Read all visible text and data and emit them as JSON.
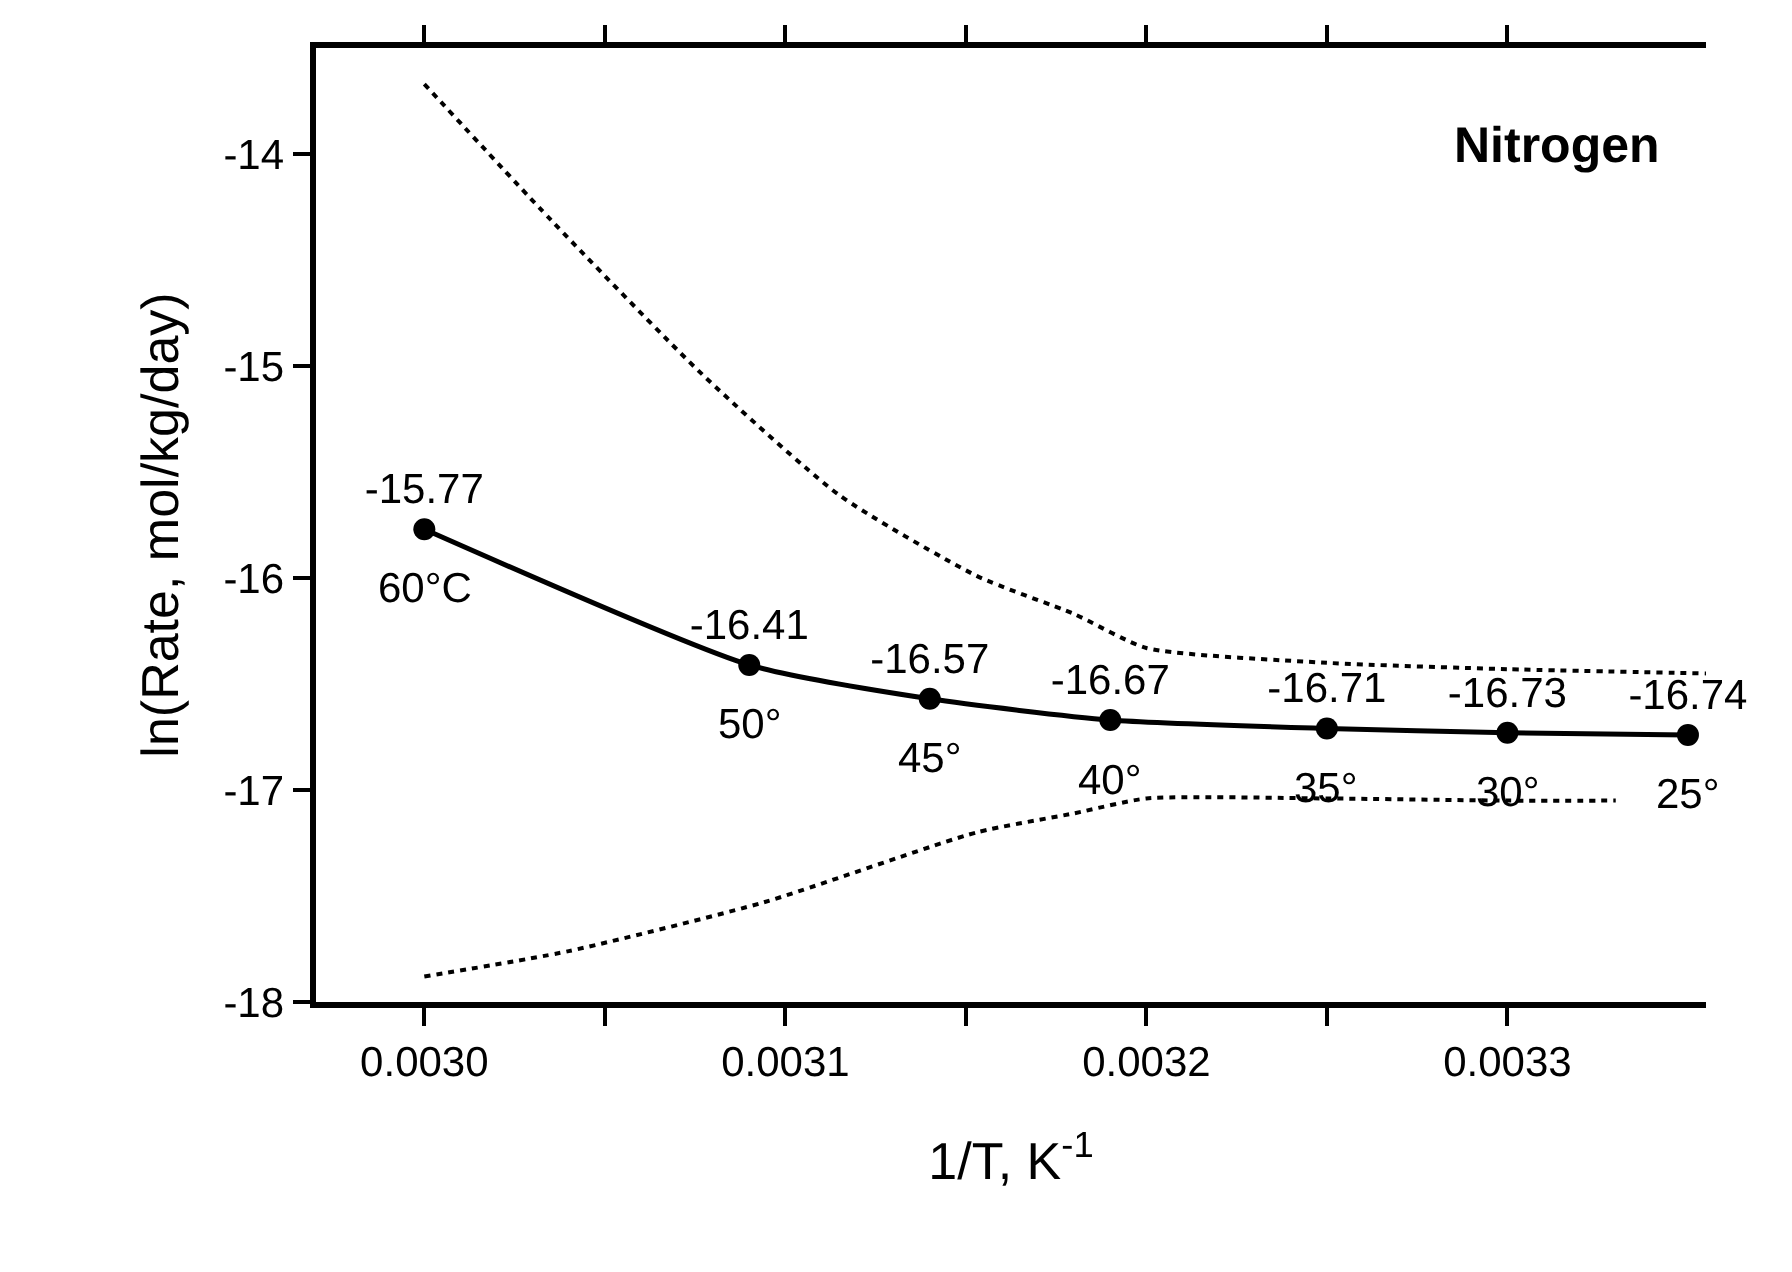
{
  "chart_data": {
    "type": "line",
    "title": "Nitrogen",
    "xlabel": "1/T, K$^{-1}$",
    "ylabel": "ln(Rate, mol/kg/day)",
    "x": [
      0.003,
      0.00309,
      0.00314,
      0.00319,
      0.00325,
      0.0033,
      0.00335
    ],
    "series": [
      {
        "color": "#000000",
        "values": [
          -15.77,
          -16.41,
          -16.57,
          -16.67,
          -16.71,
          -16.73,
          -16.74
        ],
        "value_labels": [
          "-15.77",
          "-16.41",
          "-16.57",
          "-16.67",
          "-16.71",
          "-16.73",
          "-16.74"
        ],
        "marker": "circle",
        "line_style": "solid"
      },
      {
        "color": "#000000",
        "type": "line",
        "x": [
          0.003,
          0.003035,
          0.003077,
          0.003115,
          0.003153,
          0.00318,
          0.0032,
          0.00325,
          0.0033,
          0.003355
        ],
        "values": [
          -13.67,
          -14.31,
          -15.04,
          -15.61,
          -15.99,
          -16.17,
          -16.33,
          -16.4,
          -16.43,
          -16.45
        ],
        "marker": "none",
        "line_style": "dotted"
      },
      {
        "color": "#000000",
        "type": "line",
        "x": [
          0.003,
          0.00304,
          0.003094,
          0.003153,
          0.00318,
          0.0032,
          0.00325,
          0.0033,
          0.00333
        ],
        "values": [
          -17.88,
          -17.76,
          -17.53,
          -17.2,
          -17.11,
          -17.04,
          -17.04,
          -17.05,
          -17.05
        ],
        "marker": "none",
        "line_style": "dotted"
      }
    ],
    "annotations": [
      {
        "text": "60°C",
        "x": 0.003,
        "y": -15.77
      },
      {
        "text": "50°",
        "x": 0.00309,
        "y": -16.41
      },
      {
        "text": "45°",
        "x": 0.00314,
        "y": -16.57
      },
      {
        "text": "40°",
        "x": 0.00319,
        "y": -16.67
      },
      {
        "text": "35°",
        "x": 0.00325,
        "y": -16.71
      },
      {
        "text": "30°",
        "x": 0.0033,
        "y": -16.73
      },
      {
        "text": "25°",
        "x": 0.00335,
        "y": -16.74
      }
    ],
    "xlim": [
      0.00297,
      0.003355
    ],
    "xticks": [
      {
        "value": 0.003,
        "label": "0.0030"
      },
      {
        "value": 0.00305,
        "label": null
      },
      {
        "value": 0.0031,
        "label": "0.0031"
      },
      {
        "value": 0.00315,
        "label": null
      },
      {
        "value": 0.0032,
        "label": "0.0032"
      },
      {
        "value": 0.00325,
        "label": null
      },
      {
        "value": 0.0033,
        "label": "0.0033"
      }
    ],
    "ylim": [
      -18,
      -13.5
    ],
    "yticks": [
      -18,
      -17,
      -16,
      -15,
      -14
    ]
  }
}
